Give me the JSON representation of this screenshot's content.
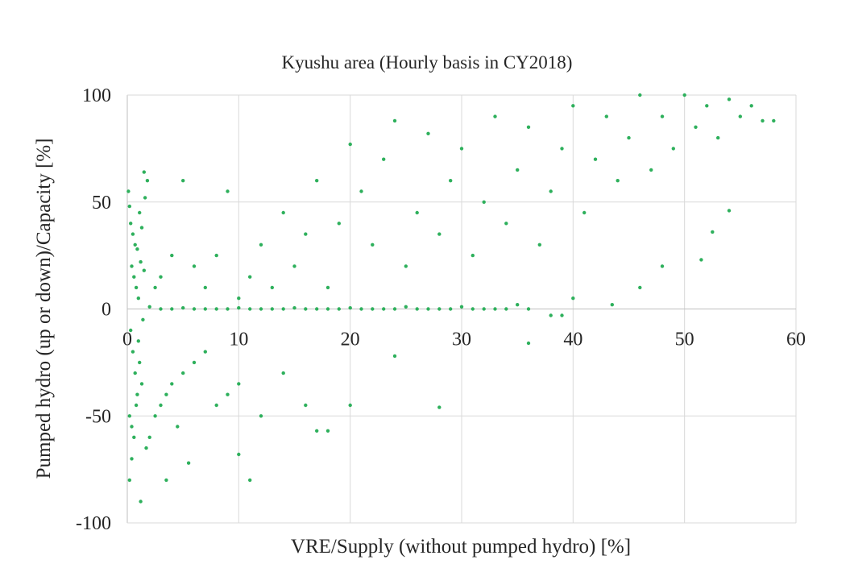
{
  "chart_data": {
    "type": "scatter",
    "title": "Kyushu area (Hourly basis in CY2018)",
    "xlabel": "VRE/Supply (without pumped hydro) [%]",
    "ylabel": "Pumped hydro (up or down)/Capacity [%]",
    "xlim": [
      0,
      60
    ],
    "ylim": [
      -100,
      100
    ],
    "x_ticks": [
      "0",
      "10",
      "20",
      "30",
      "40",
      "50",
      "60"
    ],
    "y_ticks": [
      "100",
      "50",
      "0",
      "-50",
      "-100"
    ],
    "grid": true,
    "legend": "none",
    "point_color": "#2eb05c",
    "series": [
      {
        "points": [
          [
            0.1,
            55
          ],
          [
            0.2,
            48
          ],
          [
            0.3,
            40
          ],
          [
            0.5,
            35
          ],
          [
            0.7,
            30
          ],
          [
            0.9,
            28
          ],
          [
            1.1,
            45
          ],
          [
            1.3,
            38
          ],
          [
            0.4,
            20
          ],
          [
            0.6,
            15
          ],
          [
            0.8,
            10
          ],
          [
            1.0,
            5
          ],
          [
            1.2,
            22
          ],
          [
            1.5,
            18
          ],
          [
            0.3,
            -10
          ],
          [
            0.5,
            -20
          ],
          [
            0.7,
            -30
          ],
          [
            0.9,
            -40
          ],
          [
            1.1,
            -25
          ],
          [
            1.3,
            -35
          ],
          [
            0.2,
            -50
          ],
          [
            0.4,
            -55
          ],
          [
            0.6,
            -60
          ],
          [
            0.8,
            -45
          ],
          [
            1.0,
            -15
          ],
          [
            1.4,
            -5
          ],
          [
            1.6,
            52
          ],
          [
            1.8,
            60
          ],
          [
            1.5,
            64
          ],
          [
            0.4,
            -70
          ],
          [
            0.2,
            -80
          ],
          [
            1.2,
            -90
          ],
          [
            1.7,
            -65
          ],
          [
            2.0,
            -60
          ],
          [
            2.5,
            -50
          ],
          [
            3.0,
            -45
          ],
          [
            3.5,
            -40
          ],
          [
            4.0,
            -35
          ],
          [
            4.5,
            -55
          ],
          [
            5.0,
            -30
          ],
          [
            6.0,
            -25
          ],
          [
            7.0,
            -20
          ],
          [
            8.0,
            -45
          ],
          [
            9.0,
            -40
          ],
          [
            10.0,
            -35
          ],
          [
            11.0,
            -80
          ],
          [
            10.0,
            -68
          ],
          [
            12.0,
            -50
          ],
          [
            14.0,
            -30
          ],
          [
            16.0,
            -45
          ],
          [
            18.0,
            -57
          ],
          [
            17.0,
            -57
          ],
          [
            20.0,
            -45
          ],
          [
            24.0,
            -22
          ],
          [
            28.0,
            -46
          ],
          [
            36.0,
            -16
          ],
          [
            3.5,
            -80
          ],
          [
            5.5,
            -72
          ],
          [
            2.5,
            10
          ],
          [
            3.0,
            15
          ],
          [
            4.0,
            25
          ],
          [
            5.0,
            60
          ],
          [
            6.0,
            20
          ],
          [
            7.0,
            10
          ],
          [
            8.0,
            25
          ],
          [
            9.0,
            55
          ],
          [
            10.0,
            5
          ],
          [
            11.0,
            15
          ],
          [
            12.0,
            30
          ],
          [
            13.0,
            10
          ],
          [
            14.0,
            45
          ],
          [
            15.0,
            20
          ],
          [
            16.0,
            35
          ],
          [
            17.0,
            60
          ],
          [
            18.0,
            10
          ],
          [
            19.0,
            40
          ],
          [
            20.0,
            77
          ],
          [
            21.0,
            55
          ],
          [
            22.0,
            30
          ],
          [
            23.0,
            70
          ],
          [
            24.0,
            88
          ],
          [
            25.0,
            20
          ],
          [
            26.0,
            45
          ],
          [
            27.0,
            82
          ],
          [
            28.0,
            35
          ],
          [
            29.0,
            60
          ],
          [
            30.0,
            75
          ],
          [
            31.0,
            25
          ],
          [
            32.0,
            50
          ],
          [
            33.0,
            90
          ],
          [
            34.0,
            40
          ],
          [
            35.0,
            65
          ],
          [
            36.0,
            85
          ],
          [
            37.0,
            30
          ],
          [
            38.0,
            55
          ],
          [
            39.0,
            75
          ],
          [
            40.0,
            95
          ],
          [
            41.0,
            45
          ],
          [
            42.0,
            70
          ],
          [
            43.0,
            90
          ],
          [
            44.0,
            60
          ],
          [
            45.0,
            80
          ],
          [
            46.0,
            100
          ],
          [
            47.0,
            65
          ],
          [
            48.0,
            90
          ],
          [
            49.0,
            75
          ],
          [
            50.0,
            100
          ],
          [
            51.0,
            85
          ],
          [
            52.0,
            95
          ],
          [
            53.0,
            80
          ],
          [
            54.0,
            98
          ],
          [
            55.0,
            90
          ],
          [
            56.0,
            95
          ],
          [
            57.0,
            88
          ],
          [
            58.0,
            88
          ],
          [
            54.0,
            46
          ],
          [
            51.5,
            23
          ],
          [
            52.5,
            36
          ],
          [
            48.0,
            20
          ],
          [
            46.0,
            10
          ],
          [
            43.5,
            2
          ],
          [
            40.0,
            5
          ],
          [
            35.0,
            2
          ],
          [
            30.0,
            1
          ],
          [
            25.0,
            1
          ],
          [
            20.0,
            0.5
          ],
          [
            15.0,
            0.5
          ],
          [
            10.0,
            0.5
          ],
          [
            5.0,
            0.5
          ],
          [
            2.0,
            1
          ],
          [
            3.0,
            0
          ],
          [
            4.0,
            0
          ],
          [
            6.0,
            0
          ],
          [
            7.0,
            0
          ],
          [
            8.0,
            0
          ],
          [
            9.0,
            0
          ],
          [
            11.0,
            0
          ],
          [
            12.0,
            0
          ],
          [
            13.0,
            0
          ],
          [
            14.0,
            0
          ],
          [
            16.0,
            0
          ],
          [
            17.0,
            0
          ],
          [
            18.0,
            0
          ],
          [
            19.0,
            0
          ],
          [
            21.0,
            0
          ],
          [
            22.0,
            0
          ],
          [
            23.0,
            0
          ],
          [
            24.0,
            0
          ],
          [
            26.0,
            0
          ],
          [
            27.0,
            0
          ],
          [
            28.0,
            0
          ],
          [
            29.0,
            0
          ],
          [
            31.0,
            0
          ],
          [
            32.0,
            0
          ],
          [
            33.0,
            0
          ],
          [
            34.0,
            0
          ],
          [
            36.0,
            0
          ],
          [
            38.0,
            -3
          ],
          [
            39.0,
            -3
          ]
        ]
      }
    ]
  }
}
